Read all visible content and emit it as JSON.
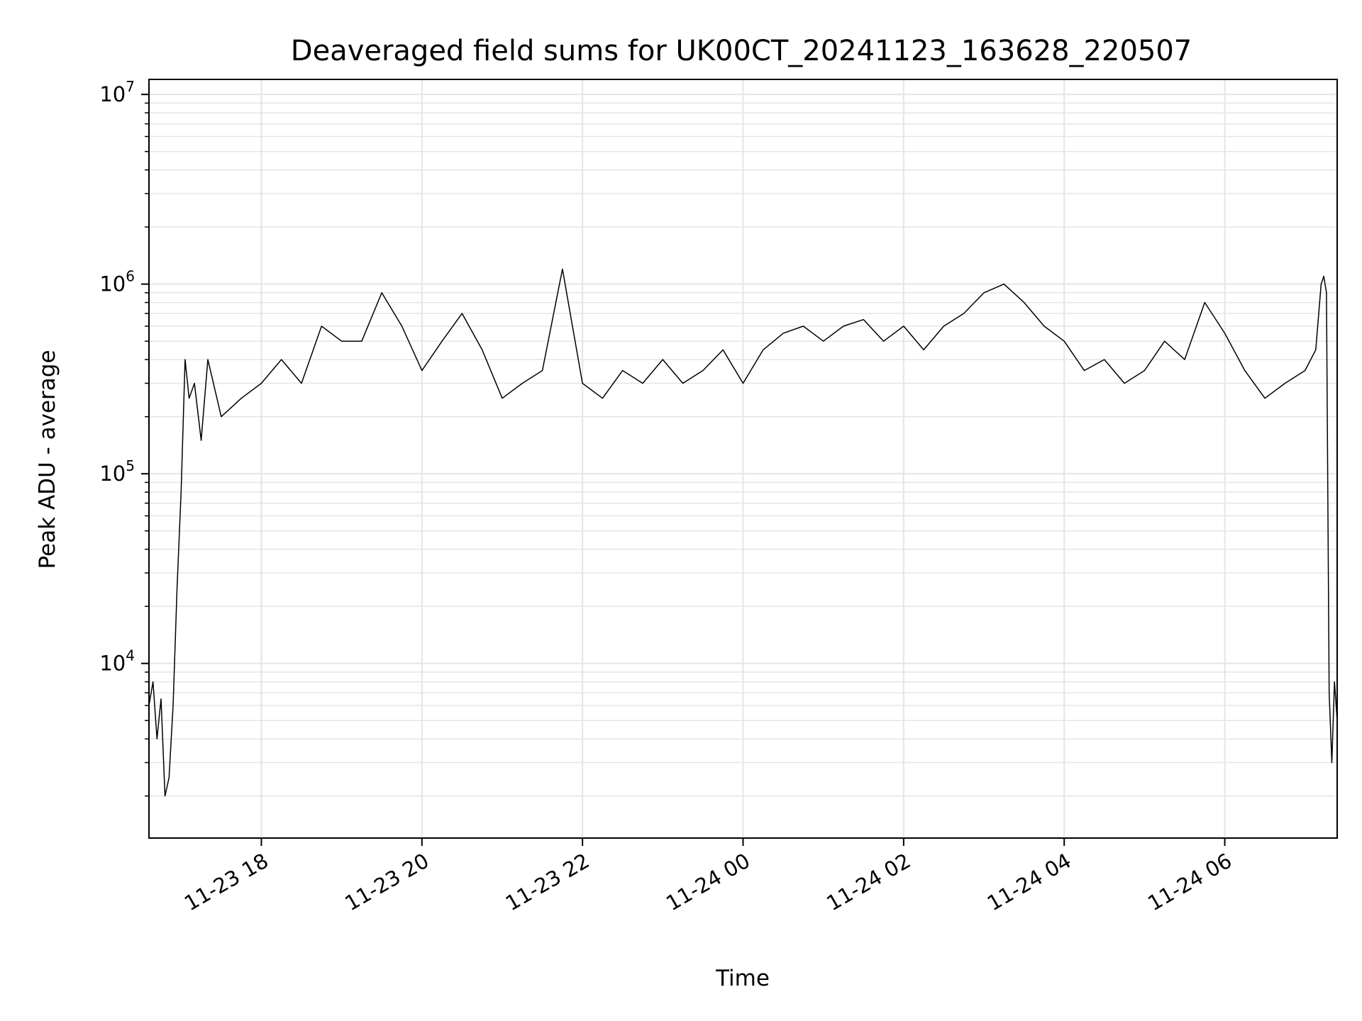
{
  "chart_data": {
    "type": "line",
    "title": "Deaveraged field sums for UK00CT_20241123_163628_220507",
    "xlabel": "Time",
    "ylabel": "Peak ADU - average",
    "yscale": "log",
    "ylim": [
      1200,
      12000000
    ],
    "xlim": [
      "2024-11-23 16:36",
      "2024-11-24 07:24"
    ],
    "grid": true,
    "line_color": "#000000",
    "grid_color": "#e5e5e5",
    "x_ticks": [
      {
        "value": "2024-11-23 18:00",
        "label": "11-23 18"
      },
      {
        "value": "2024-11-23 20:00",
        "label": "11-23 20"
      },
      {
        "value": "2024-11-23 22:00",
        "label": "11-23 22"
      },
      {
        "value": "2024-11-24 00:00",
        "label": "11-24 00"
      },
      {
        "value": "2024-11-24 02:00",
        "label": "11-24 02"
      },
      {
        "value": "2024-11-24 04:00",
        "label": "11-24 04"
      },
      {
        "value": "2024-11-24 06:00",
        "label": "11-24 06"
      }
    ],
    "y_ticks": [
      {
        "value": 10000,
        "base": "10",
        "exp": "4"
      },
      {
        "value": 100000,
        "base": "10",
        "exp": "5"
      },
      {
        "value": 1000000,
        "base": "10",
        "exp": "6"
      },
      {
        "value": 10000000,
        "base": "10",
        "exp": "7"
      }
    ],
    "series": [
      {
        "x": [
          "2024-11-23 16:36",
          "2024-11-23 16:39",
          "2024-11-23 16:42",
          "2024-11-23 16:45",
          "2024-11-23 16:48",
          "2024-11-23 16:51",
          "2024-11-23 16:54",
          "2024-11-23 16:57",
          "2024-11-23 17:00",
          "2024-11-23 17:03",
          "2024-11-23 17:06",
          "2024-11-23 17:10",
          "2024-11-23 17:15",
          "2024-11-23 17:20",
          "2024-11-23 17:30",
          "2024-11-23 17:45",
          "2024-11-23 18:00",
          "2024-11-23 18:15",
          "2024-11-23 18:30",
          "2024-11-23 18:45",
          "2024-11-23 19:00",
          "2024-11-23 19:15",
          "2024-11-23 19:30",
          "2024-11-23 19:45",
          "2024-11-23 20:00",
          "2024-11-23 20:15",
          "2024-11-23 20:30",
          "2024-11-23 20:45",
          "2024-11-23 21:00",
          "2024-11-23 21:15",
          "2024-11-23 21:30",
          "2024-11-23 21:45",
          "2024-11-23 22:00",
          "2024-11-23 22:15",
          "2024-11-23 22:30",
          "2024-11-23 22:45",
          "2024-11-23 23:00",
          "2024-11-23 23:15",
          "2024-11-23 23:30",
          "2024-11-23 23:45",
          "2024-11-24 00:00",
          "2024-11-24 00:15",
          "2024-11-24 00:30",
          "2024-11-24 00:45",
          "2024-11-24 01:00",
          "2024-11-24 01:15",
          "2024-11-24 01:30",
          "2024-11-24 01:45",
          "2024-11-24 02:00",
          "2024-11-24 02:15",
          "2024-11-24 02:30",
          "2024-11-24 02:45",
          "2024-11-24 03:00",
          "2024-11-24 03:15",
          "2024-11-24 03:30",
          "2024-11-24 03:45",
          "2024-11-24 04:00",
          "2024-11-24 04:15",
          "2024-11-24 04:30",
          "2024-11-24 04:45",
          "2024-11-24 05:00",
          "2024-11-24 05:15",
          "2024-11-24 05:30",
          "2024-11-24 05:45",
          "2024-11-24 06:00",
          "2024-11-24 06:15",
          "2024-11-24 06:30",
          "2024-11-24 06:45",
          "2024-11-24 07:00",
          "2024-11-24 07:08",
          "2024-11-24 07:12",
          "2024-11-24 07:14",
          "2024-11-24 07:16",
          "2024-11-24 07:18",
          "2024-11-24 07:20",
          "2024-11-24 07:22",
          "2024-11-24 07:24"
        ],
        "values": [
          6000,
          8000,
          4000,
          6500,
          2000,
          2500,
          6000,
          25000,
          80000,
          400000,
          250000,
          300000,
          150000,
          400000,
          200000,
          250000,
          300000,
          400000,
          300000,
          600000,
          500000,
          500000,
          900000,
          600000,
          350000,
          500000,
          700000,
          450000,
          250000,
          300000,
          350000,
          1200000,
          300000,
          250000,
          350000,
          300000,
          400000,
          300000,
          350000,
          450000,
          300000,
          450000,
          550000,
          600000,
          500000,
          600000,
          650000,
          500000,
          600000,
          450000,
          600000,
          700000,
          900000,
          1000000,
          800000,
          600000,
          500000,
          350000,
          400000,
          300000,
          350000,
          500000,
          400000,
          800000,
          550000,
          350000,
          250000,
          300000,
          350000,
          450000,
          1000000,
          1100000,
          900000,
          7000,
          3000,
          8000,
          5000
        ]
      }
    ]
  }
}
